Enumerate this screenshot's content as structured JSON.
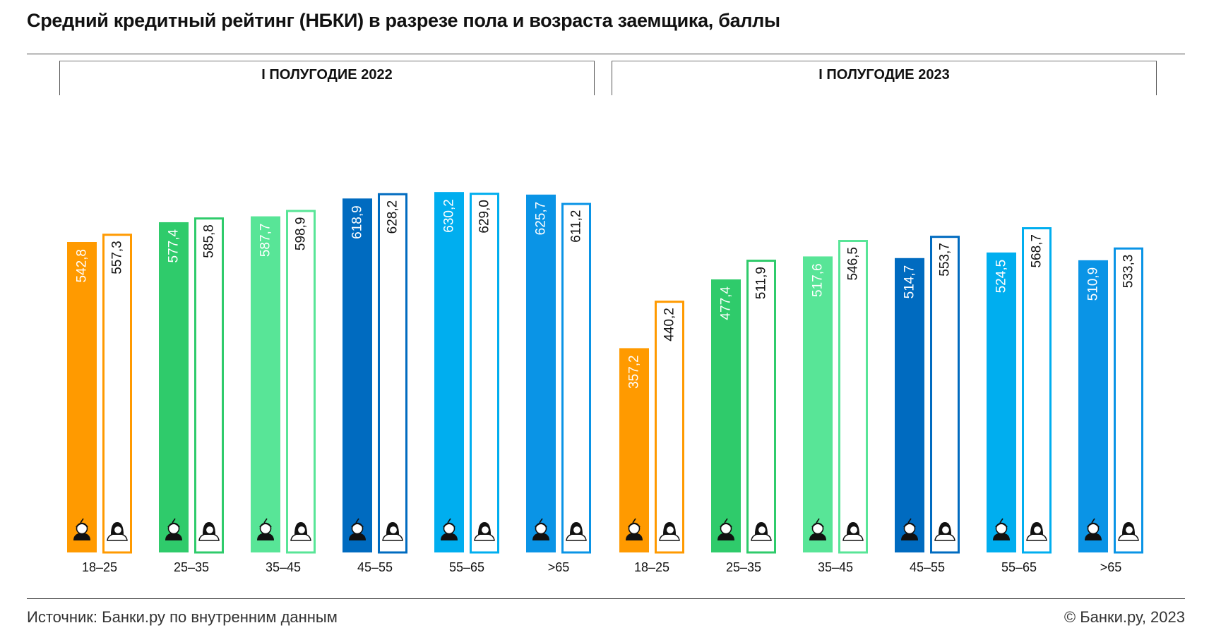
{
  "header": {
    "title": "Средний кредитный рейтинг (НБКИ) в разрезе пола и возраста заемщика, баллы"
  },
  "footer": {
    "source": "Источник: Банки.ру по внутренним данным",
    "copyright": "© Банки.ру, 2023"
  },
  "colors": {
    "18–25": "#FF9A00",
    "25–35": "#2FCB6B",
    "35–45": "#58E597",
    "45–55": "#006BC0",
    "55–65": "#00AEEF",
    ">65": "#0A94E6"
  },
  "chart_data": {
    "type": "bar",
    "ylim": [
      0,
      660
    ],
    "series_icons": [
      "man-icon",
      "woman-icon"
    ],
    "panels": [
      {
        "label": "I ПОЛУГОДИЕ 2022",
        "categories": [
          "18–25",
          "25–35",
          "35–45",
          "45–55",
          "55–65",
          ">65"
        ],
        "series": [
          {
            "values": [
              542.8,
              577.4,
              587.7,
              618.9,
              630.2,
              625.7
            ],
            "labels": [
              "542,8",
              "577,4",
              "587,7",
              "618,9",
              "630,2",
              "625,7"
            ]
          },
          {
            "values": [
              557.3,
              585.8,
              598.9,
              628.2,
              629.0,
              611.2
            ],
            "labels": [
              "557,3",
              "585,8",
              "598,9",
              "628,2",
              "629,0",
              "611,2"
            ]
          }
        ]
      },
      {
        "label": "I ПОЛУГОДИЕ 2023",
        "categories": [
          "18–25",
          "25–35",
          "35–45",
          "45–55",
          "55–65",
          ">65"
        ],
        "series": [
          {
            "values": [
              357.2,
              477.4,
              517.6,
              514.7,
              524.5,
              510.9
            ],
            "labels": [
              "357,2",
              "477,4",
              "517,6",
              "514,7",
              "524,5",
              "510,9"
            ]
          },
          {
            "values": [
              440.2,
              511.9,
              546.5,
              553.7,
              568.7,
              533.3
            ],
            "labels": [
              "440,2",
              "511,9",
              "546,5",
              "553,7",
              "568,7",
              "533,3"
            ]
          }
        ]
      }
    ]
  }
}
